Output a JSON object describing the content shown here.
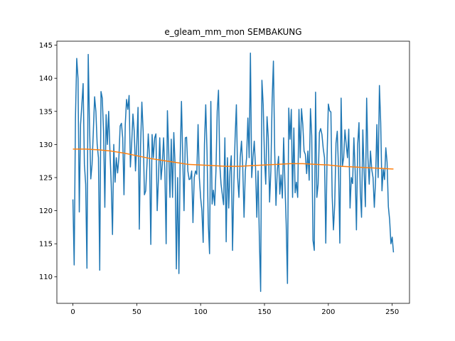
{
  "chart_data": {
    "type": "line",
    "title": "e_gleam_mm_mon SEMBAKUNG",
    "xlim": [
      -12.55,
      263.55
    ],
    "xticks": [
      0,
      50,
      100,
      150,
      200,
      250
    ],
    "ylim": [
      106.0,
      145.6
    ],
    "yticks": [
      110,
      115,
      120,
      125,
      130,
      135,
      140,
      145
    ],
    "series": [
      {
        "color": "#1f77b4",
        "x": [
          0,
          1,
          2,
          3,
          4,
          5,
          6,
          7,
          8,
          9,
          10,
          11,
          12,
          13,
          14,
          15,
          16,
          17,
          18,
          19,
          20,
          21,
          22,
          23,
          24,
          25,
          26,
          27,
          28,
          29,
          30,
          31,
          32,
          33,
          34,
          35,
          36,
          37,
          38,
          39,
          40,
          41,
          42,
          43,
          44,
          45,
          46,
          47,
          48,
          49,
          50,
          51,
          52,
          53,
          54,
          55,
          56,
          57,
          58,
          59,
          60,
          61,
          62,
          63,
          64,
          65,
          66,
          67,
          68,
          69,
          70,
          71,
          72,
          73,
          74,
          75,
          76,
          77,
          78,
          79,
          80,
          81,
          82,
          83,
          84,
          85,
          86,
          87,
          88,
          89,
          90,
          91,
          92,
          93,
          94,
          95,
          96,
          97,
          98,
          99,
          100,
          101,
          102,
          103,
          104,
          105,
          106,
          107,
          108,
          109,
          110,
          111,
          112,
          113,
          114,
          115,
          116,
          117,
          118,
          119,
          120,
          121,
          122,
          123,
          124,
          125,
          126,
          127,
          128,
          129,
          130,
          131,
          132,
          133,
          134,
          135,
          136,
          137,
          138,
          139,
          140,
          141,
          142,
          143,
          144,
          145,
          146,
          147,
          148,
          149,
          150,
          151,
          152,
          153,
          154,
          155,
          156,
          157,
          158,
          159,
          160,
          161,
          162,
          163,
          164,
          165,
          166,
          167,
          168,
          169,
          170,
          171,
          172,
          173,
          174,
          175,
          176,
          177,
          178,
          179,
          180,
          181,
          182,
          183,
          184,
          185,
          186,
          187,
          188,
          189,
          190,
          191,
          192,
          193,
          194,
          195,
          196,
          197,
          198,
          199,
          200,
          201,
          202,
          203,
          204,
          205,
          206,
          207,
          208,
          209,
          210,
          211,
          212,
          213,
          214,
          215,
          216,
          217,
          218,
          219,
          220,
          221,
          222,
          223,
          224,
          225,
          226,
          227,
          228,
          229,
          230,
          231,
          232,
          233,
          234,
          235,
          236,
          237,
          238,
          239,
          240,
          241,
          242,
          243,
          244,
          245,
          246,
          247,
          248,
          249,
          250,
          251
        ],
        "values": [
          121.7,
          111.8,
          134.0,
          143.0,
          140.0,
          119.8,
          133.0,
          136.0,
          139.2,
          127.0,
          124.0,
          111.3,
          143.6,
          133.0,
          124.8,
          127.0,
          132.0,
          137.2,
          135.0,
          130.0,
          128.0,
          111.0,
          138.0,
          137.0,
          132.0,
          120.5,
          134.5,
          130.0,
          135.0,
          129.0,
          124.0,
          116.4,
          130.0,
          124.3,
          128.0,
          125.7,
          128.0,
          132.8,
          133.2,
          131.0,
          122.4,
          133.0,
          136.8,
          135.3,
          137.4,
          126.6,
          130.0,
          134.6,
          132.0,
          126.0,
          130.0,
          135.6,
          117.2,
          130.0,
          136.4,
          132.0,
          122.4,
          123.0,
          127.0,
          131.6,
          128.0,
          114.9,
          131.5,
          128.0,
          131.0,
          131.6,
          120.0,
          125.0,
          131.0,
          124.7,
          127.0,
          131.0,
          126.0,
          115.0,
          135.1,
          129.0,
          122.0,
          130.8,
          122.0,
          131.8,
          127.0,
          111.2,
          125.0,
          110.5,
          128.0,
          136.5,
          128.0,
          120.0,
          131.0,
          131.1,
          126.0,
          124.7,
          124.8,
          126.0,
          118.2,
          125.0,
          126.0,
          125.5,
          133.0,
          125.0,
          122.0,
          120.0,
          115.2,
          130.0,
          136.0,
          129.0,
          118.0,
          113.5,
          136.5,
          121.0,
          123.1,
          120.8,
          126.0,
          135.0,
          138.2,
          127.0,
          124.0,
          122.4,
          120.9,
          131.0,
          115.3,
          128.0,
          120.4,
          126.0,
          128.3,
          114.0,
          124.0,
          131.0,
          136.0,
          125.0,
          122.0,
          128.0,
          130.5,
          126.5,
          119.0,
          126.0,
          128.0,
          134.0,
          128.0,
          143.8,
          125.0,
          128.0,
          130.5,
          126.5,
          119.0,
          126.0,
          115.7,
          107.8,
          139.7,
          136.0,
          128.0,
          124.0,
          134.2,
          131.0,
          121.3,
          126.0,
          136.7,
          142.6,
          129.0,
          120.8,
          126.0,
          128.2,
          122.5,
          125.4,
          121.9,
          131.0,
          124.2,
          118.0,
          109.0,
          135.5,
          130.8,
          135.3,
          122.0,
          132.5,
          122.7,
          124.3,
          122.0,
          135.3,
          128.0,
          135.4,
          133.0,
          129.0,
          128.5,
          125.6,
          129.0,
          124.6,
          135.4,
          131.3,
          115.5,
          114.0,
          137.9,
          122.0,
          124.0,
          131.8,
          132.4,
          131.5,
          129.4,
          128.0,
          115.1,
          128.0,
          136.1,
          135.1,
          134.9,
          122.3,
          117.1,
          121.0,
          130.2,
          132.0,
          126.0,
          115.1,
          137.0,
          126.7,
          128.0,
          132.2,
          130.0,
          128.0,
          132.3,
          120.4,
          125.0,
          124.1,
          131.0,
          126.0,
          117.1,
          130.0,
          133.3,
          123.0,
          119.0,
          132.2,
          126.0,
          120.6,
          137.0,
          128.0,
          124.0,
          129.0,
          126.2,
          125.0,
          120.5,
          124.7,
          133.0,
          125.0,
          138.9,
          133.3,
          123.0,
          126.2,
          124.7,
          129.5,
          127.3,
          120.6,
          118.6,
          115.0,
          116.0,
          113.7
        ]
      },
      {
        "color": "#ff7f0e",
        "x": [
          0,
          10,
          20,
          30,
          40,
          50,
          60,
          70,
          80,
          90,
          100,
          110,
          120,
          130,
          140,
          150,
          160,
          170,
          180,
          190,
          200,
          210,
          220,
          230,
          240,
          250,
          251
        ],
        "values": [
          129.3,
          129.3,
          129.2,
          129.0,
          128.7,
          128.3,
          127.9,
          127.6,
          127.3,
          127.0,
          126.9,
          126.8,
          126.7,
          126.7,
          126.8,
          126.9,
          127.0,
          127.1,
          127.1,
          127.0,
          126.9,
          126.7,
          126.6,
          126.5,
          126.4,
          126.3,
          126.3
        ]
      }
    ]
  }
}
